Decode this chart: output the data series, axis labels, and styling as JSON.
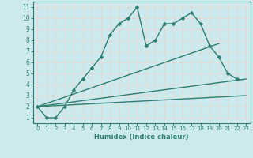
{
  "title": "",
  "xlabel": "Humidex (Indice chaleur)",
  "background_color": "#cce9ee",
  "grid_color": "#e8d8d8",
  "line_color": "#2e7d6e",
  "xlim": [
    -0.5,
    23.5
  ],
  "ylim": [
    0.5,
    11.5
  ],
  "xticks": [
    0,
    1,
    2,
    3,
    4,
    5,
    6,
    7,
    8,
    9,
    10,
    11,
    12,
    13,
    14,
    15,
    16,
    17,
    18,
    19,
    20,
    21,
    22,
    23
  ],
  "yticks": [
    1,
    2,
    3,
    4,
    5,
    6,
    7,
    8,
    9,
    10,
    11
  ],
  "series": [
    {
      "x": [
        0,
        1,
        2,
        3,
        4,
        5,
        6,
        7,
        8,
        9,
        10,
        11,
        12,
        13,
        14,
        15,
        16,
        17,
        18,
        19,
        20,
        21,
        22
      ],
      "y": [
        2,
        1,
        1,
        2,
        3.5,
        4.5,
        5.5,
        6.5,
        8.5,
        9.5,
        10,
        11,
        7.5,
        8,
        9.5,
        9.5,
        10,
        10.5,
        9.5,
        7.5,
        6.5,
        5,
        4.5
      ],
      "marker": "D",
      "markersize": 2.5,
      "linewidth": 1.0,
      "has_marker": true
    },
    {
      "x": [
        0,
        23
      ],
      "y": [
        2,
        4.5
      ],
      "marker": null,
      "linewidth": 1.0,
      "has_marker": false
    },
    {
      "x": [
        0,
        23
      ],
      "y": [
        2,
        3.0
      ],
      "marker": null,
      "linewidth": 1.0,
      "has_marker": false
    },
    {
      "x": [
        0,
        20
      ],
      "y": [
        2,
        7.7
      ],
      "marker": null,
      "linewidth": 1.0,
      "has_marker": false
    }
  ]
}
